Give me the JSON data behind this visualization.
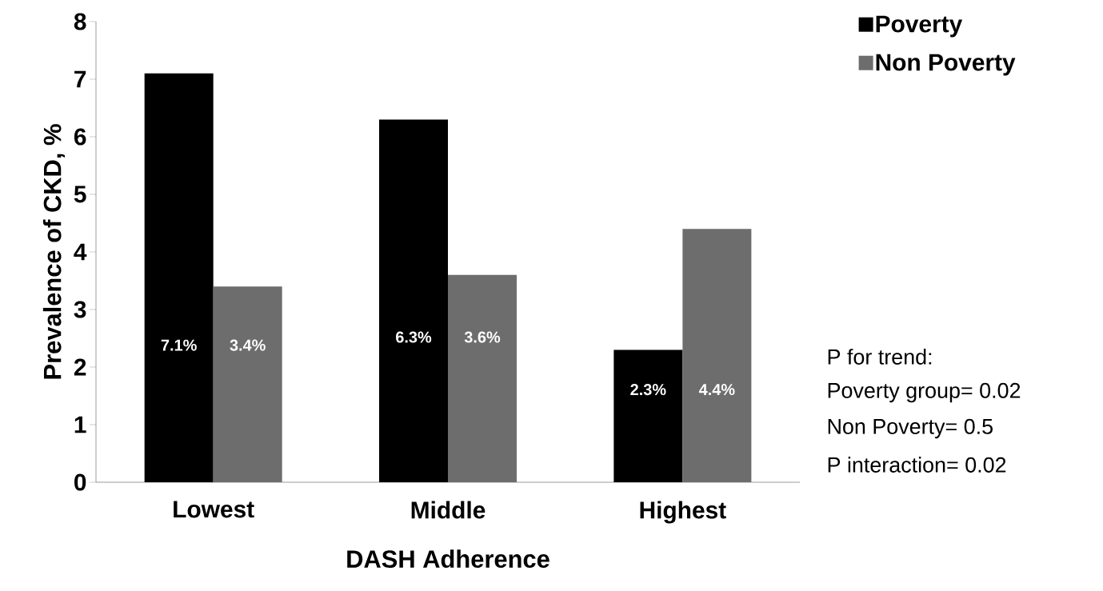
{
  "chart_data": {
    "type": "bar",
    "xlabel": "DASH Adherence",
    "ylabel": "Prevalence of CKD, %",
    "categories": [
      "Lowest",
      "Middle",
      "Highest"
    ],
    "series": [
      {
        "name": "Poverty",
        "color": "#000000",
        "values": [
          7.1,
          6.3,
          2.3
        ],
        "value_labels": [
          "7.1%",
          "6.3%",
          "2.3%"
        ]
      },
      {
        "name": "Non Poverty",
        "color": "#6d6d6d",
        "values": [
          3.4,
          3.6,
          4.4
        ],
        "value_labels": [
          "3.4%",
          "3.6%",
          "4.4%"
        ]
      }
    ],
    "ylim": [
      0,
      8
    ],
    "yticks": [
      0,
      1,
      2,
      3,
      4,
      5,
      6,
      7,
      8
    ],
    "grid": false,
    "legend": "top right",
    "annotations": [
      "P for trend:",
      "Poverty group= 0.02",
      "Non Poverty= 0.5",
      "P interaction= 0.02"
    ]
  }
}
